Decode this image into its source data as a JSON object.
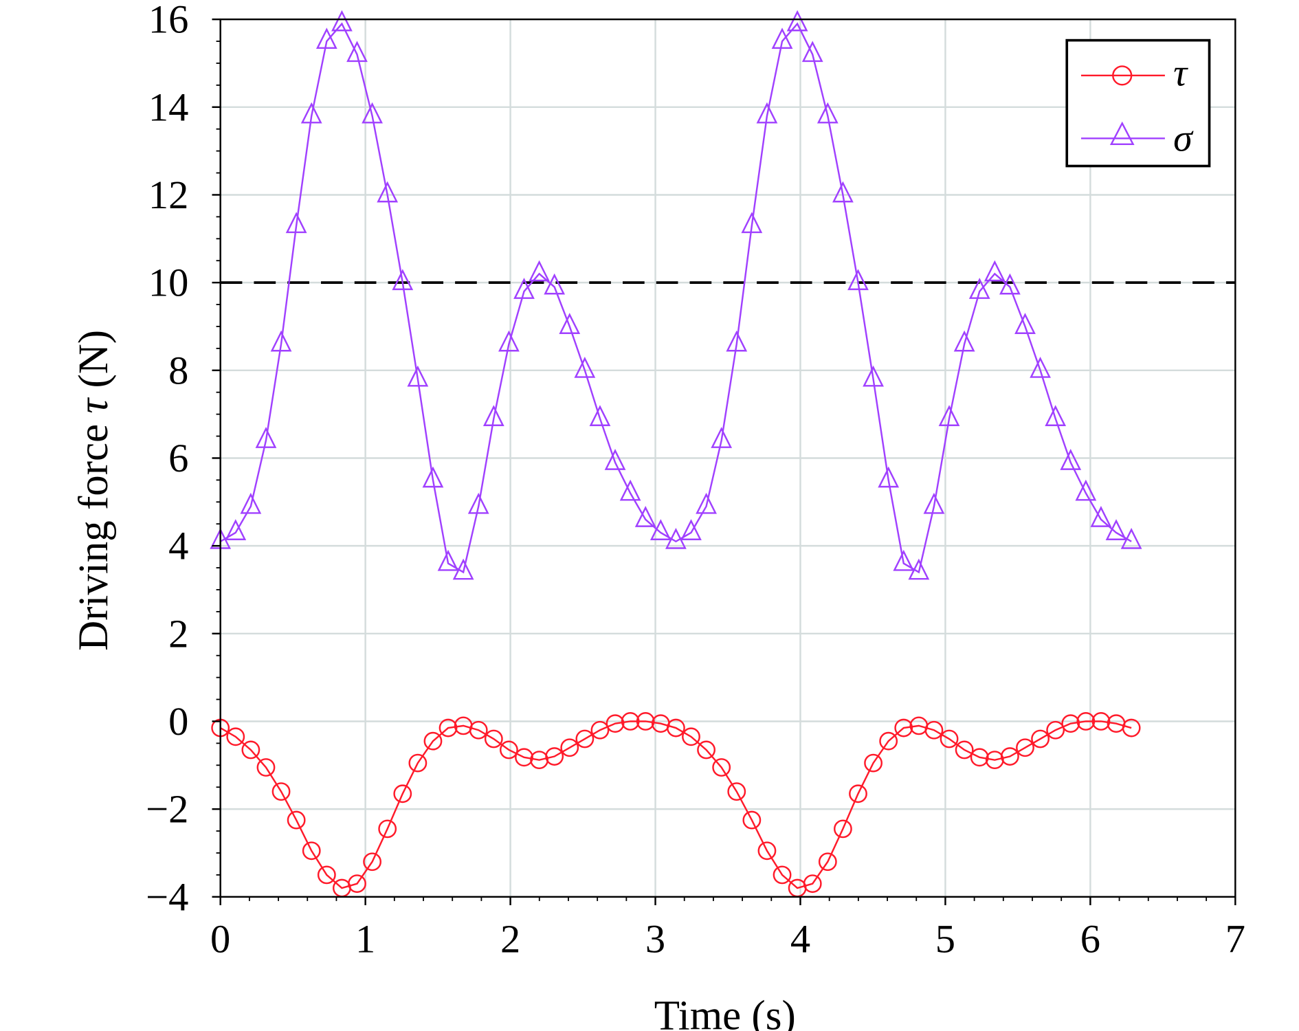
{
  "chart_data": {
    "type": "line",
    "title": "",
    "xlabel": "Time (s)",
    "ylabel_prefix": "Driving force ",
    "ylabel_symbol": "τ",
    "ylabel_suffix": " (N)",
    "xlim": [
      0,
      7
    ],
    "ylim": [
      -4,
      16
    ],
    "xticks": [
      "0",
      "1",
      "2",
      "3",
      "4",
      "5",
      "6",
      "7"
    ],
    "yticks": [
      "−4",
      "−2",
      "0",
      "2",
      "4",
      "6",
      "8",
      "10",
      "12",
      "14",
      "16"
    ],
    "grid": true,
    "legend_placement": "top-right",
    "reference_line": {
      "y": 10,
      "style": "dashed",
      "color": "#000000"
    },
    "x_step": 0.10472,
    "series": [
      {
        "name": "τ",
        "color": "#ff1a2a",
        "marker": "circle",
        "values": [
          -0.15,
          -0.35,
          -0.65,
          -1.05,
          -1.6,
          -2.25,
          -2.95,
          -3.5,
          -3.8,
          -3.7,
          -3.2,
          -2.45,
          -1.65,
          -0.95,
          -0.45,
          -0.15,
          -0.1,
          -0.2,
          -0.4,
          -0.65,
          -0.82,
          -0.88,
          -0.8,
          -0.6,
          -0.4,
          -0.2,
          -0.05,
          0.0,
          0.0,
          -0.05,
          -0.15,
          -0.35,
          -0.65,
          -1.05,
          -1.6,
          -2.25,
          -2.95,
          -3.5,
          -3.8,
          -3.7,
          -3.2,
          -2.45,
          -1.65,
          -0.95,
          -0.45,
          -0.15,
          -0.1,
          -0.2,
          -0.4,
          -0.65,
          -0.82,
          -0.88,
          -0.8,
          -0.6,
          -0.4,
          -0.2,
          -0.05,
          0.0,
          0.0,
          -0.05,
          -0.15
        ]
      },
      {
        "name": "σ",
        "color": "#a040ff",
        "marker": "triangle",
        "values": [
          4.1,
          4.3,
          4.9,
          6.4,
          8.6,
          11.3,
          13.8,
          15.5,
          15.9,
          15.2,
          13.8,
          12.0,
          10.0,
          7.8,
          5.5,
          3.6,
          3.4,
          4.9,
          6.9,
          8.6,
          9.8,
          10.2,
          9.9,
          9.0,
          8.0,
          6.9,
          5.9,
          5.2,
          4.6,
          4.3,
          4.1,
          4.3,
          4.9,
          6.4,
          8.6,
          11.3,
          13.8,
          15.5,
          15.9,
          15.2,
          13.8,
          12.0,
          10.0,
          7.8,
          5.5,
          3.6,
          3.4,
          4.9,
          6.9,
          8.6,
          9.8,
          10.2,
          9.9,
          9.0,
          8.0,
          6.9,
          5.9,
          5.2,
          4.6,
          4.3,
          4.1
        ]
      }
    ]
  }
}
